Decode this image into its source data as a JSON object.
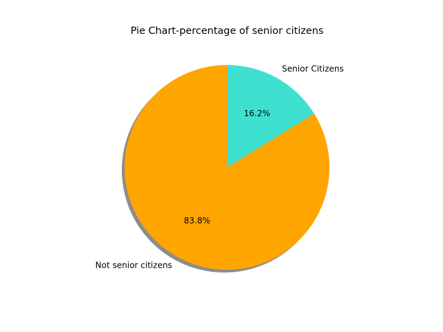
{
  "chart_data": {
    "type": "pie",
    "title": "Pie Chart-percentage of senior citizens",
    "start_angle_deg": 90,
    "direction": "counterclockwise",
    "shadow": true,
    "slices": [
      {
        "label": "Not senior citizens",
        "value": 83.8,
        "pct_label": "83.8%",
        "color": "#FFA500"
      },
      {
        "label": "Senior Citizens",
        "value": 16.2,
        "pct_label": "16.2%",
        "color": "#40E0D0"
      }
    ]
  }
}
